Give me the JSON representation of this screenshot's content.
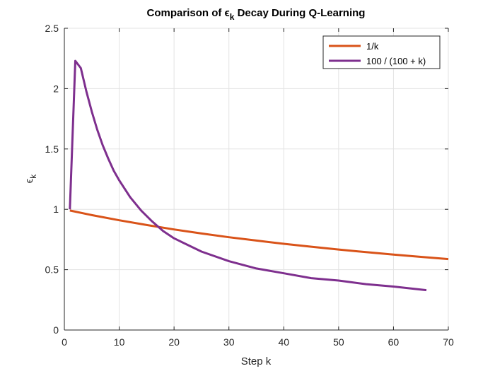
{
  "chart_data": {
    "type": "line",
    "title": {
      "prefix": "Comparison of ",
      "symbol": "ϵ",
      "subscript": "k",
      "suffix": " Decay During Q-Learning"
    },
    "xlabel": "Step k",
    "ylabel": {
      "symbol": "ϵ",
      "subscript": "k"
    },
    "xlim": [
      0,
      70
    ],
    "ylim": [
      0,
      2.5
    ],
    "xticks": [
      0,
      10,
      20,
      30,
      40,
      50,
      60,
      70
    ],
    "yticks": [
      0,
      0.5,
      1,
      1.5,
      2,
      2.5
    ],
    "ytick_labels": [
      "0",
      "0.5",
      "1",
      "1.5",
      "2",
      "2.5"
    ],
    "grid": true,
    "legend_position": "top-right",
    "series": [
      {
        "name": "1/k",
        "color": "#D95319",
        "x": [
          1,
          5,
          10,
          15,
          20,
          25,
          30,
          35,
          40,
          45,
          50,
          55,
          60,
          65,
          70
        ],
        "y": [
          0.99,
          0.952,
          0.909,
          0.87,
          0.833,
          0.8,
          0.769,
          0.741,
          0.714,
          0.69,
          0.667,
          0.645,
          0.625,
          0.606,
          0.588
        ]
      },
      {
        "name": "100 / (100 + k)",
        "color": "#7E2F8E",
        "x": [
          1,
          2,
          3,
          4,
          5,
          6,
          7,
          8,
          9,
          10,
          12,
          14,
          16,
          18,
          20,
          25,
          30,
          35,
          40,
          45,
          50,
          55,
          60,
          66
        ],
        "y": [
          1.0,
          2.23,
          2.17,
          1.98,
          1.81,
          1.66,
          1.53,
          1.42,
          1.32,
          1.24,
          1.1,
          0.99,
          0.9,
          0.82,
          0.76,
          0.65,
          0.57,
          0.51,
          0.47,
          0.43,
          0.41,
          0.38,
          0.36,
          0.33
        ]
      }
    ]
  }
}
